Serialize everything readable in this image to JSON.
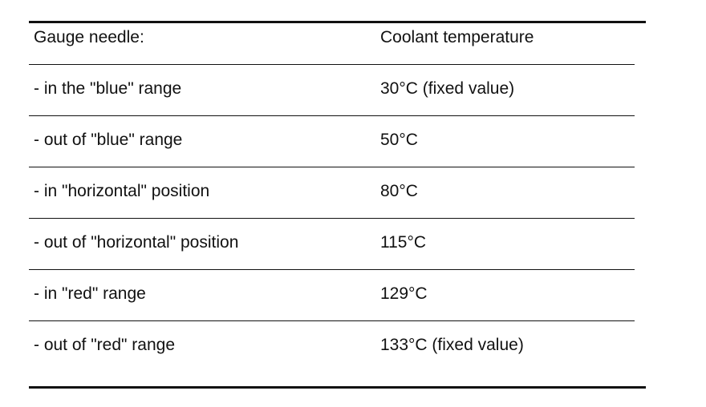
{
  "table": {
    "header": [
      "Gauge needle:",
      "Coolant temperature"
    ],
    "rows": [
      [
        "- in the \"blue\" range",
        "30°C (fixed value)"
      ],
      [
        "- out of \"blue\" range",
        "50°C"
      ],
      [
        "- in \"horizontal\" position",
        "80°C"
      ],
      [
        "- out of \"horizontal\" position",
        "115°C"
      ],
      [
        "- in \"red\" range",
        "129°C"
      ],
      [
        "- out of \"red\" range",
        "133°C (fixed value)"
      ]
    ]
  }
}
